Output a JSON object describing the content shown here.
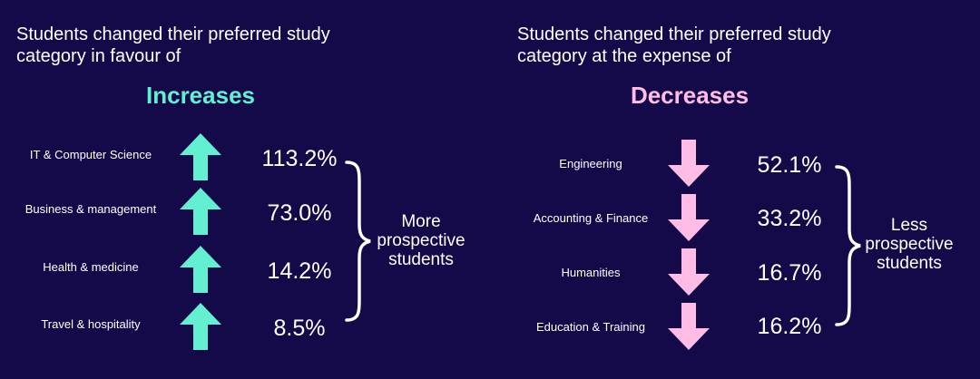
{
  "colors": {
    "background": "#140a4a",
    "increase": "#62f0d0",
    "decrease": "#ffbde6",
    "text": "#ffffff"
  },
  "left": {
    "intro": "Students changed their preferred study category in favour of",
    "heading": "Increases",
    "note": "More prospective students",
    "items": [
      {
        "category": "IT & Computer Science",
        "value": "113.2%",
        "icon": "arrow-up-icon"
      },
      {
        "category": "Business & management",
        "value": "73.0%",
        "icon": "arrow-up-icon"
      },
      {
        "category": "Health & medicine",
        "value": "14.2%",
        "icon": "arrow-up-icon"
      },
      {
        "category": "Travel & hospitality",
        "value": "8.5%",
        "icon": "arrow-up-icon"
      }
    ]
  },
  "right": {
    "intro": "Students changed their preferred study category at the expense of",
    "heading": "Decreases",
    "note": "Less prospective students",
    "items": [
      {
        "category": "Engineering",
        "value": "52.1%",
        "icon": "arrow-down-icon"
      },
      {
        "category": "Accounting & Finance",
        "value": "33.2%",
        "icon": "arrow-down-icon"
      },
      {
        "category": "Humanities",
        "value": "16.7%",
        "icon": "arrow-down-icon"
      },
      {
        "category": "Education & Training",
        "value": "16.2%",
        "icon": "arrow-down-icon"
      }
    ]
  }
}
